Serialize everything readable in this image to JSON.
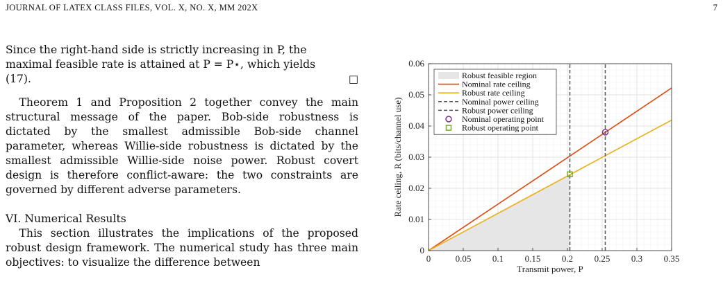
{
  "header": {
    "running_title": "JOURNAL OF LATEX CLASS FILES, VOL. X, NO. X, MM 202X",
    "page_number": "7"
  },
  "body": {
    "p1_line1": "Since the right-hand side is strictly increasing in P, the",
    "p1_line2": "maximal feasible rate is attained at P = P⋆, which yields",
    "p1_line3": "(17).",
    "qed_symbol": "□",
    "p2": "Theorem 1 and Proposition 2 together convey the main structural message of the paper. Bob-side robustness is dictated by the smallest admissible Bob-side channel parameter, whereas Willie-side robustness is dictated by the smallest admissible Willie-side noise power. Robust covert design is therefore conflict-aware: the two constraints are governed by different adverse parameters.",
    "section_heading": "VI. Numerical Results",
    "p3": "This section illustrates the implications of the proposed robust design framework. The numerical study has three main objectives: to visualize the difference between"
  },
  "chart_data": {
    "type": "line",
    "xlabel": "Transmit power, P",
    "ylabel": "Rate ceiling, R (bits/channel use)",
    "xlim": [
      0,
      0.35
    ],
    "ylim": [
      0,
      0.06
    ],
    "x_ticks": [
      "0",
      "0.05",
      "0.1",
      "0.15",
      "0.2",
      "0.25",
      "0.3",
      "0.35"
    ],
    "y_ticks": [
      "0",
      "0.01",
      "0.02",
      "0.03",
      "0.04",
      "0.05",
      "0.06"
    ],
    "grid": true,
    "legend_position": "top-left",
    "series": [
      {
        "name": "Robust feasible region",
        "kind": "area",
        "color": "#e6e6e6",
        "x": [
          0,
          0.2035
        ],
        "y": [
          0,
          0.0245
        ]
      },
      {
        "name": "Nominal rate ceiling",
        "kind": "line",
        "color": "#d95319",
        "x": [
          0,
          0.35
        ],
        "y": [
          0,
          0.0522
        ]
      },
      {
        "name": "Robust rate ceiling",
        "kind": "line",
        "color": "#edb120",
        "x": [
          0,
          0.35
        ],
        "y": [
          0,
          0.0419
        ]
      },
      {
        "name": "Nominal power ceiling",
        "kind": "vline",
        "color": "#555555",
        "x": [
          0.2545,
          0.2545
        ],
        "y": [
          0,
          0.06
        ]
      },
      {
        "name": "Robust power ceiling",
        "kind": "vline",
        "color": "#555555",
        "x": [
          0.2035,
          0.2035
        ],
        "y": [
          0,
          0.06
        ]
      },
      {
        "name": "Nominal operating point",
        "kind": "marker-circle",
        "color": "#7e2f8e",
        "x": [
          0.2545
        ],
        "y": [
          0.038
        ]
      },
      {
        "name": "Robust operating point",
        "kind": "marker-square",
        "color": "#77ac30",
        "x": [
          0.2035
        ],
        "y": [
          0.0245
        ]
      }
    ]
  }
}
